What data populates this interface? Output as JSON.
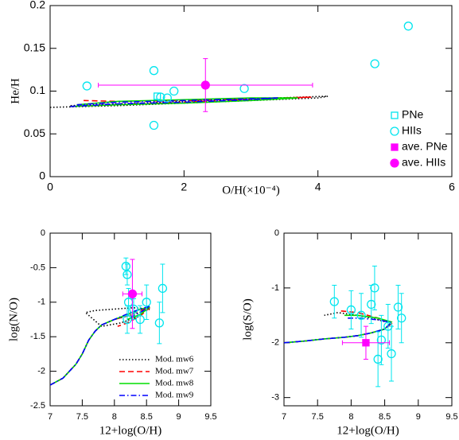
{
  "chart_data": [
    {
      "type": "scatter",
      "xlabel": "O/H(×10⁻⁴)",
      "ylabel": "He/H",
      "xlim": [
        0,
        6
      ],
      "ylim": [
        0,
        0.2
      ],
      "xticks": [
        0,
        2,
        4,
        6
      ],
      "yticks": [
        0,
        0.05,
        0.1,
        0.15,
        0.2
      ],
      "series": [
        {
          "color": "#000000",
          "dash": "dotted",
          "x": [
            0,
            1,
            2,
            3,
            4,
            4.15,
            3,
            2,
            1,
            0.3
          ],
          "y": [
            0.081,
            0.083,
            0.086,
            0.089,
            0.092,
            0.094,
            0.091,
            0.088,
            0.085,
            0.083
          ]
        },
        {
          "color": "#ff0000",
          "dash": "dashed",
          "x": [
            0.3,
            1,
            2,
            3,
            3.9,
            3,
            2,
            1,
            0.5
          ],
          "y": [
            0.082,
            0.084,
            0.087,
            0.09,
            0.093,
            0.091,
            0.089,
            0.088,
            0.089
          ]
        },
        {
          "color": "#00dd00",
          "dash": "solid",
          "x": [
            0.3,
            1,
            2,
            3,
            3.7,
            3,
            2,
            1,
            0.4
          ],
          "y": [
            0.082,
            0.084,
            0.086,
            0.089,
            0.092,
            0.092,
            0.09,
            0.088,
            0.084
          ]
        },
        {
          "color": "#0000ff",
          "dash": "dashdot",
          "x": [
            0.3,
            1,
            2,
            3,
            3.4,
            3,
            2,
            1,
            0.4
          ],
          "y": [
            0.082,
            0.085,
            0.087,
            0.09,
            0.092,
            0.091,
            0.089,
            0.087,
            0.084
          ]
        },
        {
          "name": "PNe",
          "color": "#00e5ee",
          "marker": "square",
          "x": [
            1.6
          ],
          "y": [
            0.094
          ]
        },
        {
          "name": "HIIs",
          "color": "#00e5ee",
          "marker": "circle",
          "x": [
            0.55,
            1.55,
            1.55,
            1.65,
            1.75,
            1.85,
            2.9,
            4.85,
            5.35
          ],
          "y": [
            0.106,
            0.124,
            0.06,
            0.093,
            0.092,
            0.1,
            0.103,
            0.132,
            0.176
          ]
        },
        {
          "name": "ave. PNe",
          "color": "#ff00ff",
          "marker": "filled-square",
          "x": [],
          "y": []
        },
        {
          "name": "ave. HIIs",
          "color": "#ff00ff",
          "marker": "filled-circle",
          "x": [
            2.32
          ],
          "y": [
            0.107
          ],
          "xerr": [
            1.6
          ],
          "yerr": [
            0.031
          ]
        }
      ]
    },
    {
      "type": "scatter",
      "xlabel": "12+log(O/H)",
      "ylabel": "log(N/O)",
      "xlim": [
        7,
        9.5
      ],
      "ylim": [
        -2.5,
        0
      ],
      "xticks": [
        7,
        7.5,
        8,
        8.5,
        9,
        9.5
      ],
      "yticks": [
        -2.5,
        -2,
        -1.5,
        -1,
        -0.5,
        0
      ],
      "series": [
        {
          "name": "Mod. mw6",
          "color": "#000000",
          "dash": "dotted",
          "x": [
            7.0,
            7.2,
            7.4,
            7.5,
            7.6,
            7.7,
            7.8,
            8.0,
            8.2,
            8.4,
            8.55,
            8.3,
            8.0,
            7.7,
            7.55,
            7.8,
            8.1,
            8.4
          ],
          "y": [
            -2.2,
            -2.1,
            -1.9,
            -1.75,
            -1.55,
            -1.42,
            -1.33,
            -1.25,
            -1.2,
            -1.15,
            -1.1,
            -1.08,
            -1.1,
            -1.12,
            -1.15,
            -1.35,
            -1.3,
            -1.2
          ]
        },
        {
          "name": "Mod. mw7",
          "color": "#ff0000",
          "dash": "dashed",
          "x": [
            7.0,
            7.2,
            7.4,
            7.5,
            7.6,
            7.7,
            7.8,
            8.0,
            8.2,
            8.4,
            8.55,
            8.4,
            8.2,
            8.05
          ],
          "y": [
            -2.2,
            -2.1,
            -1.9,
            -1.75,
            -1.55,
            -1.42,
            -1.33,
            -1.25,
            -1.2,
            -1.12,
            -1.08,
            -1.2,
            -1.3,
            -1.35
          ]
        },
        {
          "name": "Mod. mw8",
          "color": "#00dd00",
          "dash": "solid",
          "x": [
            7.0,
            7.2,
            7.4,
            7.5,
            7.6,
            7.7,
            7.8,
            8.0,
            8.2,
            8.4,
            8.55,
            8.4,
            8.2
          ],
          "y": [
            -2.2,
            -2.1,
            -1.9,
            -1.75,
            -1.55,
            -1.42,
            -1.33,
            -1.25,
            -1.18,
            -1.1,
            -1.07,
            -1.18,
            -1.25
          ]
        },
        {
          "name": "Mod. mw9",
          "color": "#0000ff",
          "dash": "dashdot",
          "x": [
            7.0,
            7.2,
            7.4,
            7.5,
            7.6,
            7.7,
            7.8,
            8.0,
            8.2,
            8.4,
            8.55,
            8.4,
            8.25
          ],
          "y": [
            -2.2,
            -2.1,
            -1.9,
            -1.75,
            -1.55,
            -1.42,
            -1.33,
            -1.25,
            -1.17,
            -1.1,
            -1.06,
            -1.15,
            -1.22
          ]
        },
        {
          "color": "#00e5ee",
          "marker": "circle",
          "x": [
            8.18,
            8.2,
            8.22,
            8.2,
            8.3,
            8.4,
            8.5,
            8.7,
            8.75
          ],
          "y": [
            -0.48,
            -0.6,
            -1.0,
            -1.25,
            -1.1,
            -1.25,
            -1.0,
            -1.3,
            -0.8
          ],
          "yerr": [
            0.12,
            0.15,
            0.2,
            0.2,
            0.15,
            0.2,
            0.25,
            0.3,
            0.35
          ]
        },
        {
          "color": "#ff00ff",
          "marker": "filled-circle",
          "x": [
            8.28
          ],
          "y": [
            -0.88
          ],
          "xerr": [
            0.15
          ],
          "yerr": [
            0.5
          ]
        }
      ]
    },
    {
      "type": "scatter",
      "xlabel": "12+log(O/H)",
      "ylabel": "log(S/O)",
      "xlim": [
        7,
        9.5
      ],
      "ylim": [
        -3.15,
        0
      ],
      "xticks": [
        7,
        7.5,
        8,
        8.5,
        9,
        9.5
      ],
      "yticks": [
        -3,
        -2,
        -1,
        0
      ],
      "series": [
        {
          "color": "#000000",
          "dash": "dotted",
          "x": [
            7.0,
            7.3,
            7.6,
            7.9,
            8.1,
            8.3,
            8.5,
            8.6,
            8.4,
            8.1,
            7.8,
            7.6
          ],
          "y": [
            -2.0,
            -1.97,
            -1.93,
            -1.9,
            -1.87,
            -1.82,
            -1.75,
            -1.65,
            -1.58,
            -1.5,
            -1.45,
            -1.5
          ]
        },
        {
          "color": "#ff0000",
          "dash": "dashed",
          "x": [
            7.0,
            7.3,
            7.6,
            7.9,
            8.1,
            8.3,
            8.5,
            8.6,
            8.4,
            8.1,
            7.85
          ],
          "y": [
            -2.0,
            -1.97,
            -1.93,
            -1.9,
            -1.87,
            -1.82,
            -1.75,
            -1.65,
            -1.55,
            -1.45,
            -1.42
          ]
        },
        {
          "color": "#00dd00",
          "dash": "solid",
          "x": [
            7.0,
            7.3,
            7.6,
            7.9,
            8.1,
            8.3,
            8.5,
            8.6,
            8.4,
            8.1,
            7.9
          ],
          "y": [
            -2.0,
            -1.97,
            -1.93,
            -1.9,
            -1.87,
            -1.82,
            -1.75,
            -1.62,
            -1.55,
            -1.5,
            -1.5
          ]
        },
        {
          "color": "#0000ff",
          "dash": "dashdot",
          "x": [
            7.0,
            7.3,
            7.6,
            7.9,
            8.1,
            8.3,
            8.5,
            8.6,
            8.4,
            8.1,
            7.95
          ],
          "y": [
            -2.0,
            -1.97,
            -1.93,
            -1.9,
            -1.87,
            -1.82,
            -1.75,
            -1.63,
            -1.58,
            -1.55,
            -1.55
          ]
        },
        {
          "color": "#00e5ee",
          "marker": "circle",
          "x": [
            7.75,
            8.0,
            8.15,
            8.3,
            8.35,
            8.4,
            8.45,
            8.55,
            8.6,
            8.7,
            8.75
          ],
          "y": [
            -1.25,
            -1.4,
            -1.5,
            -1.3,
            -1.0,
            -2.3,
            -1.95,
            -1.7,
            -2.2,
            -1.35,
            -1.55
          ],
          "yerr": [
            0.3,
            0.35,
            0.4,
            0.35,
            0.4,
            0.5,
            0.45,
            0.4,
            0.5,
            0.4,
            0.45
          ]
        },
        {
          "color": "#ff00ff",
          "marker": "filled-square",
          "x": [
            8.22
          ],
          "y": [
            -2.0
          ],
          "xerr": [
            0.35
          ],
          "yerr": [
            0.3
          ]
        }
      ]
    }
  ]
}
